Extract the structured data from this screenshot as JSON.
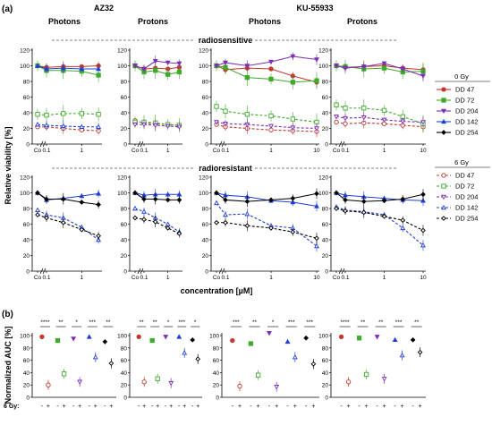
{
  "figure": {
    "panel_a_label": "(a)",
    "panel_b_label": "(b)",
    "drug_headers": [
      "AZ32",
      "KU-55933"
    ],
    "radiation_headers": [
      "Photons",
      "Protons",
      "Photons",
      "Protons"
    ],
    "row_labels": [
      "radiosensitive",
      "radioresistant"
    ],
    "ylabel_a": "Relative viability [%]",
    "xlabel_a": "concentration [µM]",
    "ylabel_b": "Normalized AUC [%]",
    "gy_row_label": "6 Gy:",
    "gy_pair_labels": [
      "-",
      "+"
    ]
  },
  "legend": {
    "groups": [
      {
        "title": "0 Gy",
        "items": [
          {
            "label": "DD 47",
            "color": "#c0392b",
            "marker": "circle",
            "dashed": false
          },
          {
            "label": "DD 72",
            "color": "#3daa2b",
            "marker": "square",
            "dashed": false
          },
          {
            "label": "DD 204",
            "color": "#7d2fb5",
            "marker": "triangle-down",
            "dashed": false
          },
          {
            "label": "DD 142",
            "color": "#1f3fd6",
            "marker": "triangle-up",
            "dashed": false
          },
          {
            "label": "DD 254",
            "color": "#000000",
            "marker": "diamond",
            "dashed": false
          }
        ]
      },
      {
        "title": "6 Gy",
        "items": [
          {
            "label": "DD 47",
            "color": "#c0392b",
            "marker": "circle",
            "dashed": true
          },
          {
            "label": "DD 72",
            "color": "#3daa2b",
            "marker": "square",
            "dashed": true
          },
          {
            "label": "DD 204",
            "color": "#7d2fb5",
            "marker": "triangle-down",
            "dashed": true
          },
          {
            "label": "DD 142",
            "color": "#1f3fd6",
            "marker": "triangle-up",
            "dashed": true
          },
          {
            "label": "DD 254",
            "color": "#000000",
            "marker": "diamond",
            "dashed": true
          }
        ]
      }
    ]
  },
  "chart_data": [
    {
      "type": "line",
      "panel": "(a)",
      "ylim": [
        0,
        120
      ],
      "yticks": [
        "0",
        "20",
        "40",
        "60",
        "80",
        "100",
        "120"
      ],
      "x_ticks_short": [
        "Co",
        "0.1",
        "1"
      ],
      "x_ticks_long": [
        "Co",
        "0.1",
        "1",
        "10"
      ],
      "x_positions_short": [
        "Co",
        0.1,
        0.3,
        1,
        3
      ],
      "x_positions_long": [
        "Co",
        0.1,
        0.3,
        1,
        3,
        10
      ],
      "subplots": [
        {
          "row": "radiosensitive",
          "col": 0,
          "drug": "AZ32",
          "radiation": "Photons",
          "series": [
            {
              "name": "DD 47",
              "dose": "0 Gy",
              "values": [
                100,
                98,
                99,
                99,
                100
              ]
            },
            {
              "name": "DD 72",
              "dose": "0 Gy",
              "values": [
                100,
                94,
                94,
                93,
                88
              ]
            },
            {
              "name": "DD 142",
              "dose": "0 Gy",
              "values": [
                100,
                96,
                97,
                96,
                96
              ]
            },
            {
              "name": "DD 47",
              "dose": "6 Gy",
              "values": [
                22,
                22,
                20,
                18,
                17
              ]
            },
            {
              "name": "DD 72",
              "dose": "6 Gy",
              "values": [
                38,
                37,
                39,
                39,
                38
              ]
            },
            {
              "name": "DD 142",
              "dose": "6 Gy",
              "values": [
                25,
                24,
                23,
                22,
                22
              ]
            }
          ]
        },
        {
          "row": "radiosensitive",
          "col": 1,
          "drug": "AZ32",
          "radiation": "Protons",
          "series": [
            {
              "name": "DD 47",
              "dose": "0 Gy",
              "values": [
                100,
                96,
                97,
                96,
                98
              ]
            },
            {
              "name": "DD 72",
              "dose": "0 Gy",
              "values": [
                100,
                92,
                94,
                89,
                92
              ]
            },
            {
              "name": "DD 204",
              "dose": "0 Gy",
              "values": [
                100,
                96,
                106,
                104,
                103
              ]
            },
            {
              "name": "DD 47",
              "dose": "6 Gy",
              "values": [
                30,
                27,
                26,
                25,
                24
              ]
            },
            {
              "name": "DD 72",
              "dose": "6 Gy",
              "values": [
                28,
                28,
                27,
                25,
                24
              ]
            },
            {
              "name": "DD 204",
              "dose": "6 Gy",
              "values": [
                25,
                25,
                24,
                23,
                22
              ]
            }
          ]
        },
        {
          "row": "radiosensitive",
          "col": 2,
          "drug": "KU-55933",
          "radiation": "Photons",
          "series": [
            {
              "name": "DD 47",
              "dose": "0 Gy",
              "values": [
                100,
                95,
                97,
                96,
                87,
                79
              ]
            },
            {
              "name": "DD 72",
              "dose": "0 Gy",
              "values": [
                100,
                98,
                85,
                83,
                79,
                81
              ]
            },
            {
              "name": "DD 204",
              "dose": "0 Gy",
              "values": [
                100,
                104,
                100,
                105,
                112,
                108
              ]
            },
            {
              "name": "DD 47",
              "dose": "6 Gy",
              "values": [
                25,
                22,
                20,
                18,
                17,
                16
              ]
            },
            {
              "name": "DD 72",
              "dose": "6 Gy",
              "values": [
                48,
                42,
                38,
                36,
                32,
                28
              ]
            },
            {
              "name": "DD 204",
              "dose": "6 Gy",
              "values": [
                28,
                26,
                25,
                23,
                21,
                20
              ]
            }
          ]
        },
        {
          "row": "radiosensitive",
          "col": 3,
          "drug": "KU-55933",
          "radiation": "Protons",
          "series": [
            {
              "name": "DD 47",
              "dose": "0 Gy",
              "values": [
                100,
                98,
                99,
                100,
                97,
                95
              ]
            },
            {
              "name": "DD 72",
              "dose": "0 Gy",
              "values": [
                100,
                99,
                96,
                97,
                92,
                93
              ]
            },
            {
              "name": "DD 204",
              "dose": "0 Gy",
              "values": [
                100,
                97,
                99,
                103,
                96,
                87
              ]
            },
            {
              "name": "DD 47",
              "dose": "6 Gy",
              "values": [
                28,
                26,
                27,
                26,
                24,
                22
              ]
            },
            {
              "name": "DD 72",
              "dose": "6 Gy",
              "values": [
                50,
                46,
                46,
                43,
                35,
                26
              ]
            },
            {
              "name": "DD 204",
              "dose": "6 Gy",
              "values": [
                35,
                33,
                34,
                31,
                29,
                28
              ]
            }
          ]
        },
        {
          "row": "radioresistant",
          "col": 0,
          "drug": "AZ32",
          "radiation": "Photons",
          "series": [
            {
              "name": "DD 142",
              "dose": "0 Gy",
              "values": [
                100,
                91,
                93,
                96,
                99
              ]
            },
            {
              "name": "DD 254",
              "dose": "0 Gy",
              "values": [
                100,
                92,
                92,
                88,
                85
              ]
            },
            {
              "name": "DD 142",
              "dose": "6 Gy",
              "values": [
                78,
                72,
                68,
                56,
                40
              ]
            },
            {
              "name": "DD 254",
              "dose": "6 Gy",
              "values": [
                72,
                68,
                62,
                53,
                45
              ]
            }
          ]
        },
        {
          "row": "radioresistant",
          "col": 1,
          "drug": "AZ32",
          "radiation": "Protons",
          "series": [
            {
              "name": "DD 142",
              "dose": "0 Gy",
              "values": [
                100,
                97,
                98,
                98,
                98
              ]
            },
            {
              "name": "DD 254",
              "dose": "0 Gy",
              "values": [
                100,
                92,
                92,
                91,
                91
              ]
            },
            {
              "name": "DD 142",
              "dose": "6 Gy",
              "values": [
                80,
                76,
                68,
                60,
                50
              ]
            },
            {
              "name": "DD 254",
              "dose": "6 Gy",
              "values": [
                68,
                66,
                63,
                55,
                48
              ]
            }
          ]
        },
        {
          "row": "radioresistant",
          "col": 2,
          "drug": "KU-55933",
          "radiation": "Photons",
          "series": [
            {
              "name": "DD 142",
              "dose": "0 Gy",
              "values": [
                100,
                97,
                95,
                90,
                88,
                83
              ]
            },
            {
              "name": "DD 254",
              "dose": "0 Gy",
              "values": [
                100,
                91,
                89,
                91,
                93,
                99
              ]
            },
            {
              "name": "DD 142",
              "dose": "6 Gy",
              "values": [
                87,
                72,
                73,
                58,
                55,
                32
              ]
            },
            {
              "name": "DD 254",
              "dose": "6 Gy",
              "values": [
                62,
                62,
                58,
                55,
                50,
                42
              ]
            }
          ]
        },
        {
          "row": "radioresistant",
          "col": 3,
          "drug": "KU-55933",
          "radiation": "Protons",
          "series": [
            {
              "name": "DD 142",
              "dose": "0 Gy",
              "values": [
                100,
                97,
                95,
                93,
                91,
                90
              ]
            },
            {
              "name": "DD 254",
              "dose": "0 Gy",
              "values": [
                100,
                91,
                89,
                90,
                92,
                98
              ]
            },
            {
              "name": "DD 142",
              "dose": "6 Gy",
              "values": [
                82,
                78,
                76,
                72,
                55,
                33
              ]
            },
            {
              "name": "DD 254",
              "dose": "6 Gy",
              "values": [
                80,
                77,
                75,
                70,
                65,
                52
              ]
            }
          ]
        }
      ]
    },
    {
      "type": "scatter",
      "panel": "(b)",
      "ylim": [
        0,
        100
      ],
      "yticks": [
        "0",
        "20",
        "40",
        "60",
        "80",
        "100"
      ],
      "xlabel_values": [
        "-",
        "+"
      ],
      "subplots": [
        {
          "drug": "AZ32",
          "radiation": "Photons",
          "points": [
            {
              "name": "DD 47",
              "minus": 98,
              "plus": 20,
              "sig": "****"
            },
            {
              "name": "DD 72",
              "minus": 92,
              "plus": 38,
              "sig": "**"
            },
            {
              "name": "DD 204",
              "minus": 95,
              "plus": 25,
              "sig": "*"
            },
            {
              "name": "DD 142",
              "minus": 98,
              "plus": 65,
              "sig": "***"
            },
            {
              "name": "DD 254",
              "minus": 90,
              "plus": 55,
              "sig": "**"
            }
          ]
        },
        {
          "drug": "AZ32",
          "radiation": "Protons",
          "points": [
            {
              "name": "DD 47",
              "minus": 98,
              "plus": 25,
              "sig": "**"
            },
            {
              "name": "DD 72",
              "minus": 92,
              "plus": 30,
              "sig": "**"
            },
            {
              "name": "DD 204",
              "minus": 98,
              "plus": 23,
              "sig": "*"
            },
            {
              "name": "DD 142",
              "minus": 98,
              "plus": 72,
              "sig": "***"
            },
            {
              "name": "DD 254",
              "minus": 93,
              "plus": 62,
              "sig": "*"
            }
          ]
        },
        {
          "drug": "KU-55933",
          "radiation": "Photons",
          "points": [
            {
              "name": "DD 47",
              "minus": 92,
              "plus": 18,
              "sig": "***"
            },
            {
              "name": "DD 72",
              "minus": 87,
              "plus": 36,
              "sig": "**"
            },
            {
              "name": "DD 204",
              "minus": 104,
              "plus": 17,
              "sig": "*"
            },
            {
              "name": "DD 142",
              "minus": 90,
              "plus": 65,
              "sig": "***"
            },
            {
              "name": "DD 254",
              "minus": 96,
              "plus": 54,
              "sig": "***"
            }
          ]
        },
        {
          "drug": "KU-55933",
          "radiation": "Protons",
          "points": [
            {
              "name": "DD 47",
              "minus": 98,
              "plus": 25,
              "sig": "****"
            },
            {
              "name": "DD 72",
              "minus": 96,
              "plus": 37,
              "sig": "**"
            },
            {
              "name": "DD 204",
              "minus": 98,
              "plus": 30,
              "sig": "**"
            },
            {
              "name": "DD 142",
              "minus": 93,
              "plus": 68,
              "sig": "***"
            },
            {
              "name": "DD 254",
              "minus": 93,
              "plus": 73,
              "sig": "**"
            }
          ]
        }
      ]
    }
  ]
}
